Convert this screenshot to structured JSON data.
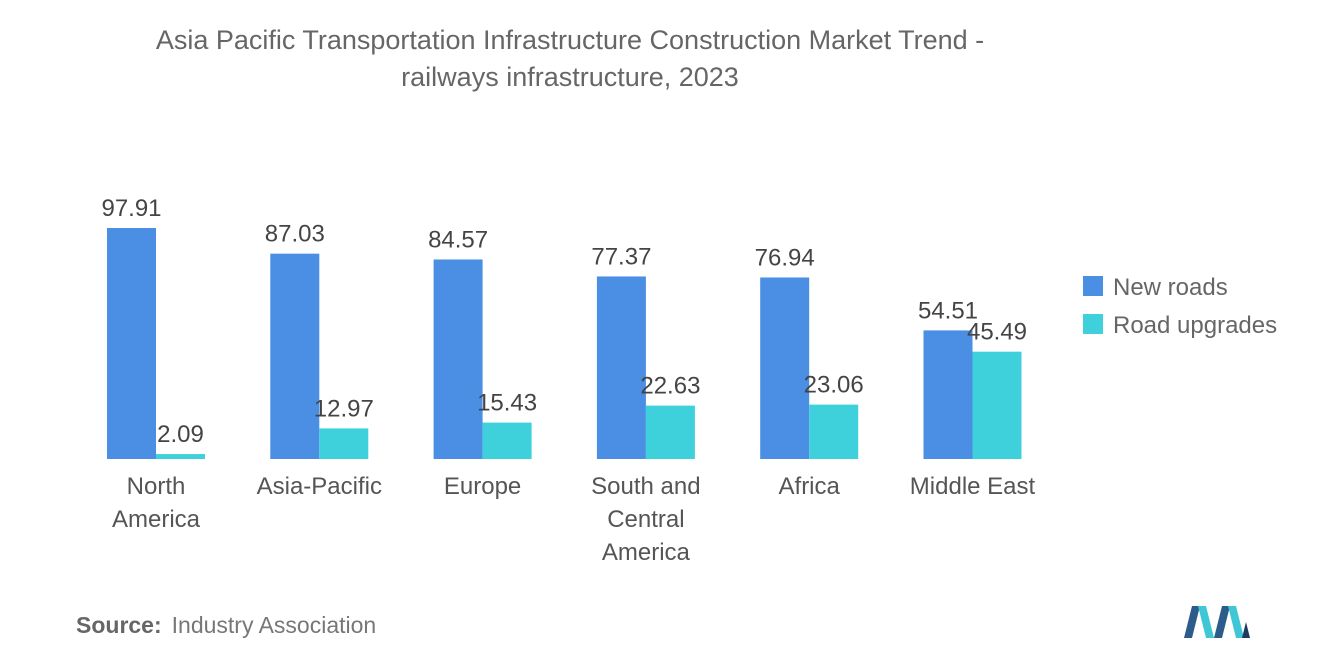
{
  "chart_data": {
    "type": "bar",
    "title": "Asia Pacific Transportation Infrastructure Construction Market Trend - railways infrastructure, 2023",
    "title_lines": [
      "Asia Pacific Transportation Infrastructure Construction Market Trend -",
      "railways infrastructure, 2023"
    ],
    "categories": [
      "North America",
      "Asia-Pacific",
      "Europe",
      "South and Central America",
      "Africa",
      "Middle East"
    ],
    "category_label_lines": [
      [
        "North",
        "America"
      ],
      [
        "Asia-Pacific"
      ],
      [
        "Europe"
      ],
      [
        "South and",
        "Central",
        "America"
      ],
      [
        "Africa"
      ],
      [
        "Middle East"
      ]
    ],
    "series": [
      {
        "name": "New roads",
        "values": [
          97.91,
          87.03,
          84.57,
          77.37,
          76.94,
          54.51
        ],
        "color": "#4a8fe3"
      },
      {
        "name": "Road upgrades",
        "values": [
          2.09,
          12.97,
          15.43,
          22.63,
          23.06,
          45.49
        ],
        "color": "#3fd1db"
      }
    ],
    "value_labels": [
      [
        "97.91",
        "87.03",
        "84.57",
        "77.37",
        "76.94",
        "54.51"
      ],
      [
        "2.09",
        "12.97",
        "15.43",
        "22.63",
        "23.06",
        "45.49"
      ]
    ],
    "ylim": [
      0,
      100
    ],
    "legend_position": "right",
    "grid": false
  },
  "source": {
    "label": "Source:",
    "text": "Industry Association"
  },
  "logo": {
    "icon": "mordor-intelligence-logo-icon",
    "colors": [
      "#1f3a5f",
      "#3fc7d6"
    ]
  }
}
